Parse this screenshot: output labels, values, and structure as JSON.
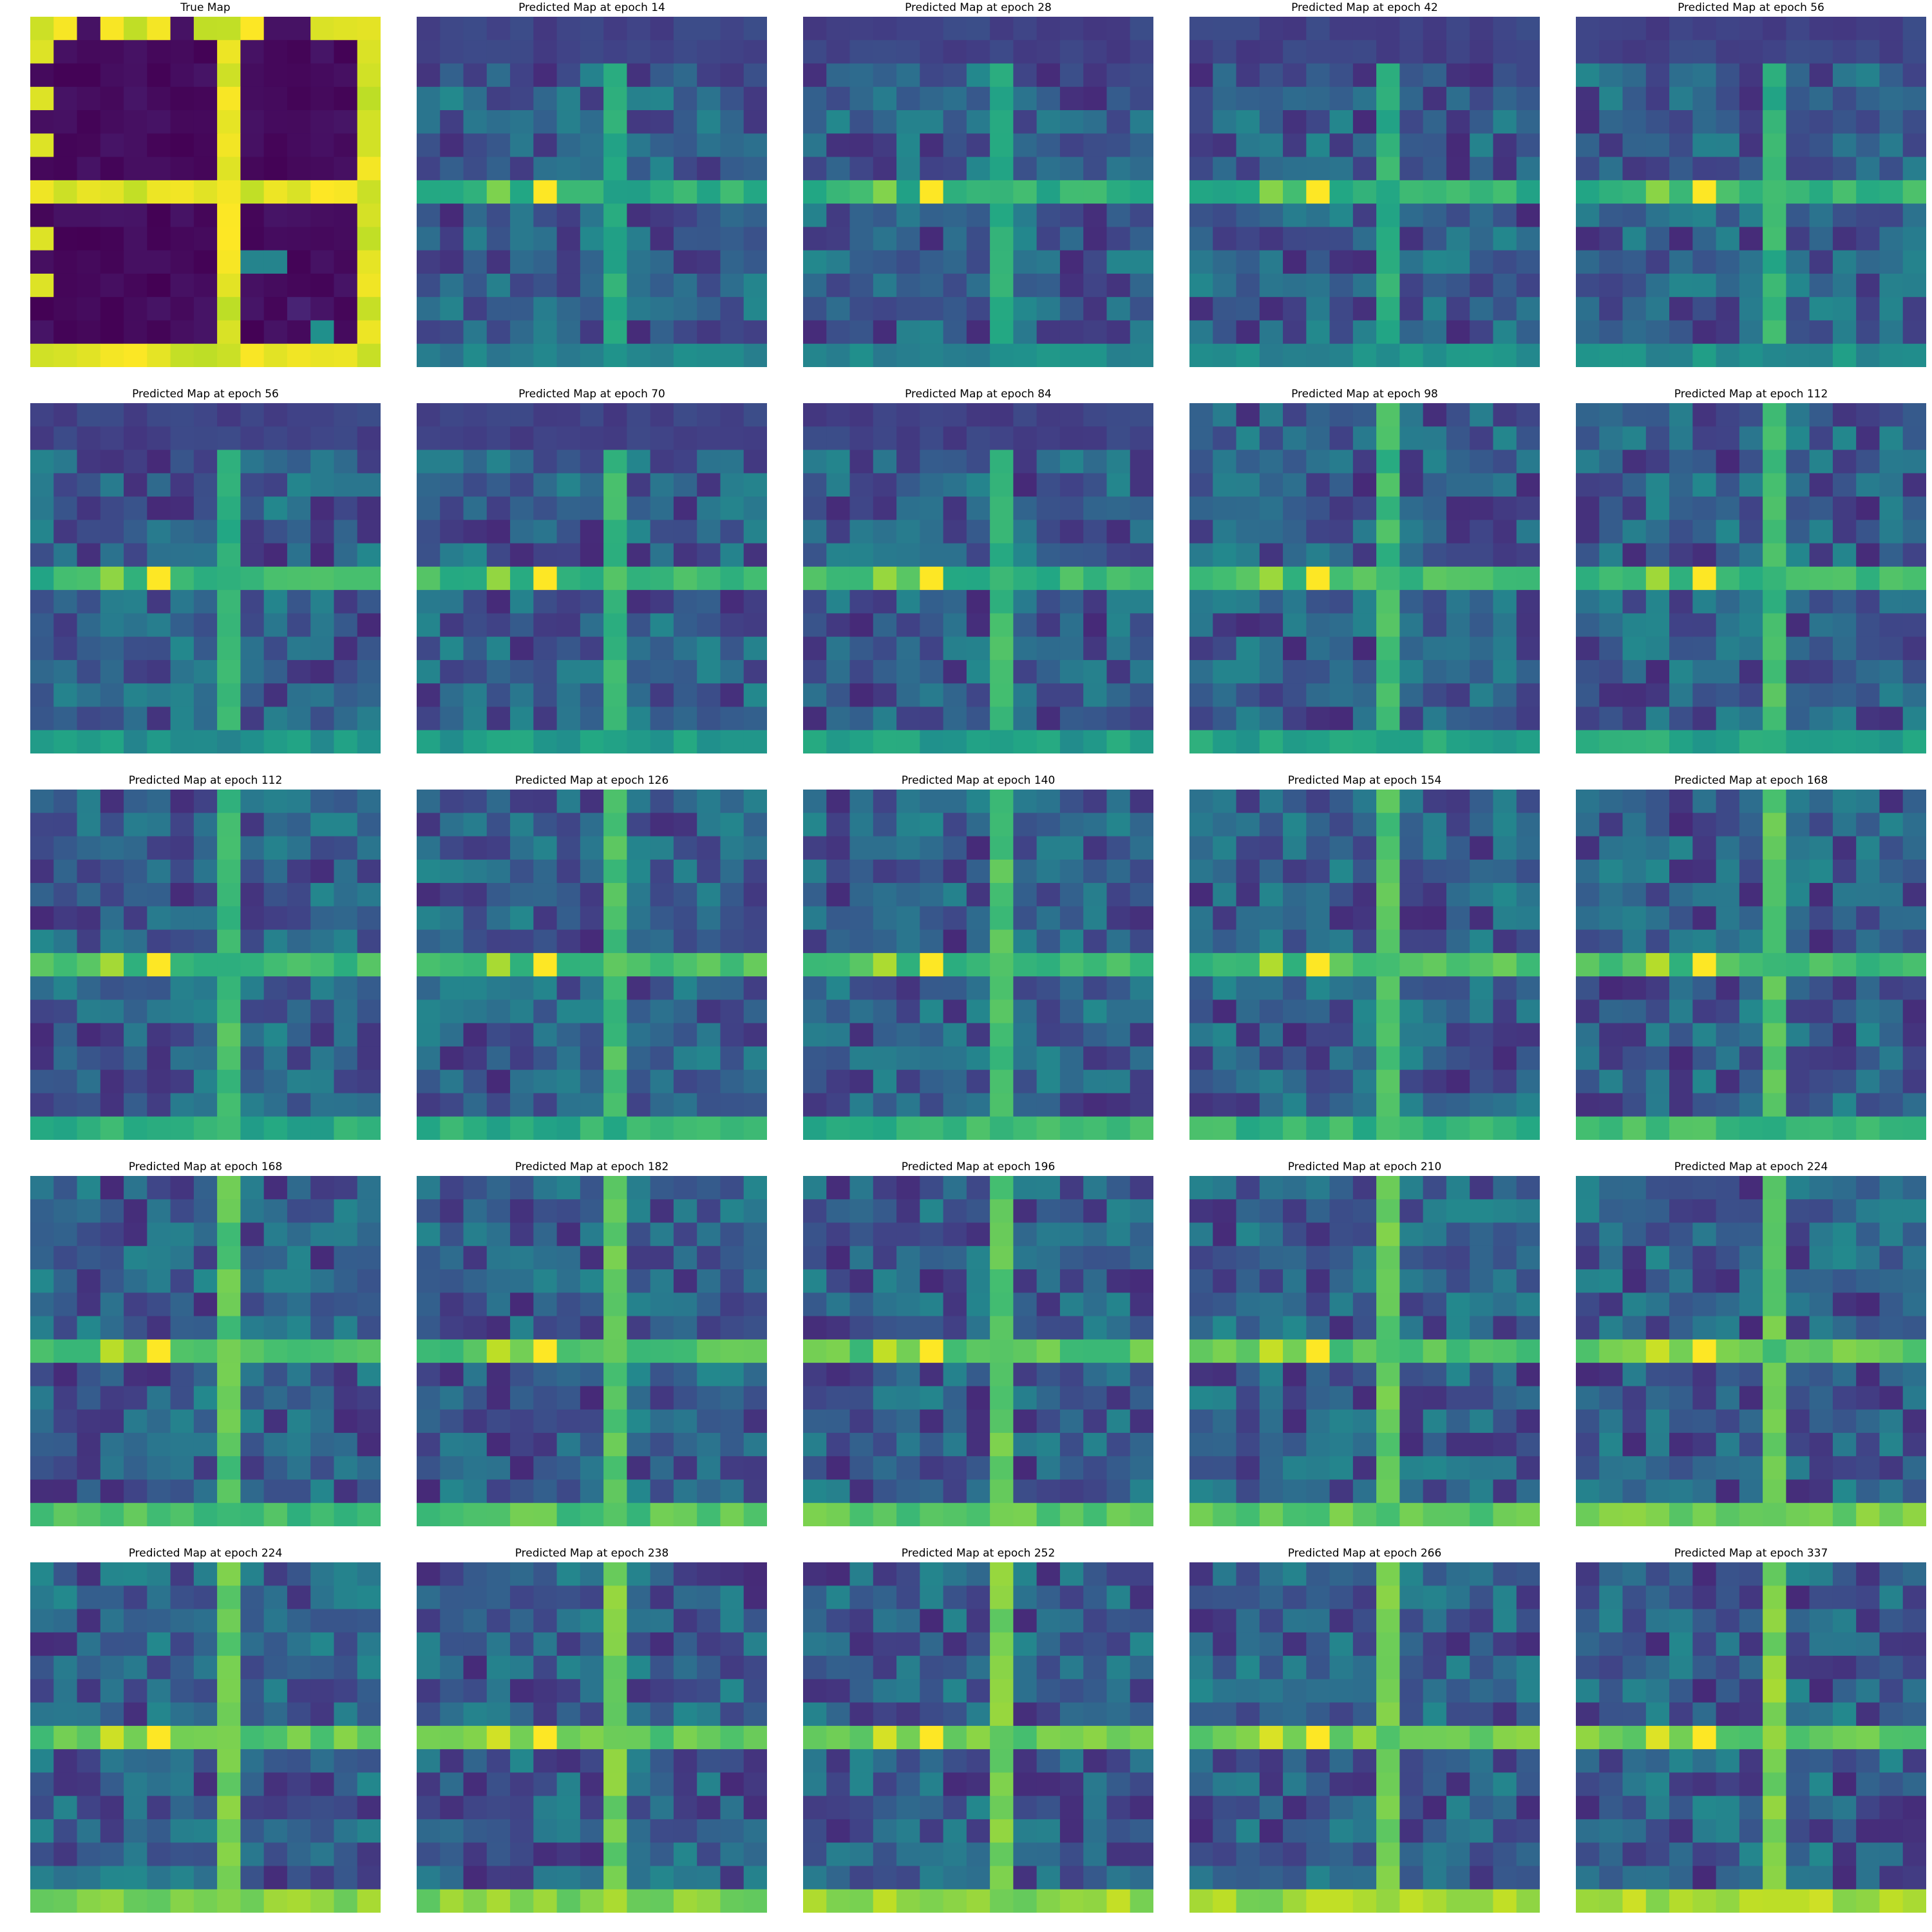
{
  "chart_data": [
    {
      "type": "heatmap",
      "title": "True Map",
      "colormap": "viridis",
      "grid_size": [
        15,
        15
      ],
      "axes": "off"
    },
    {
      "type": "heatmap",
      "title": "Predicted Map at epoch 14",
      "colormap": "viridis",
      "grid_size": [
        15,
        15
      ],
      "axes": "off"
    },
    {
      "type": "heatmap",
      "title": "Predicted Map at epoch 28",
      "colormap": "viridis",
      "grid_size": [
        15,
        15
      ],
      "axes": "off"
    },
    {
      "type": "heatmap",
      "title": "Predicted Map at epoch 42",
      "colormap": "viridis",
      "grid_size": [
        15,
        15
      ],
      "axes": "off"
    },
    {
      "type": "heatmap",
      "title": "Predicted Map at epoch 56",
      "colormap": "viridis",
      "grid_size": [
        15,
        15
      ],
      "axes": "off"
    },
    {
      "type": "heatmap",
      "title": "Predicted Map at epoch 56",
      "colormap": "viridis",
      "grid_size": [
        15,
        15
      ],
      "axes": "off"
    },
    {
      "type": "heatmap",
      "title": "Predicted Map at epoch 70",
      "colormap": "viridis",
      "grid_size": [
        15,
        15
      ],
      "axes": "off"
    },
    {
      "type": "heatmap",
      "title": "Predicted Map at epoch 84",
      "colormap": "viridis",
      "grid_size": [
        15,
        15
      ],
      "axes": "off"
    },
    {
      "type": "heatmap",
      "title": "Predicted Map at epoch 98",
      "colormap": "viridis",
      "grid_size": [
        15,
        15
      ],
      "axes": "off"
    },
    {
      "type": "heatmap",
      "title": "Predicted Map at epoch 112",
      "colormap": "viridis",
      "grid_size": [
        15,
        15
      ],
      "axes": "off"
    },
    {
      "type": "heatmap",
      "title": "Predicted Map at epoch 112",
      "colormap": "viridis",
      "grid_size": [
        15,
        15
      ],
      "axes": "off"
    },
    {
      "type": "heatmap",
      "title": "Predicted Map at epoch 126",
      "colormap": "viridis",
      "grid_size": [
        15,
        15
      ],
      "axes": "off"
    },
    {
      "type": "heatmap",
      "title": "Predicted Map at epoch 140",
      "colormap": "viridis",
      "grid_size": [
        15,
        15
      ],
      "axes": "off"
    },
    {
      "type": "heatmap",
      "title": "Predicted Map at epoch 154",
      "colormap": "viridis",
      "grid_size": [
        15,
        15
      ],
      "axes": "off"
    },
    {
      "type": "heatmap",
      "title": "Predicted Map at epoch 168",
      "colormap": "viridis",
      "grid_size": [
        15,
        15
      ],
      "axes": "off"
    },
    {
      "type": "heatmap",
      "title": "Predicted Map at epoch 168",
      "colormap": "viridis",
      "grid_size": [
        15,
        15
      ],
      "axes": "off"
    },
    {
      "type": "heatmap",
      "title": "Predicted Map at epoch 182",
      "colormap": "viridis",
      "grid_size": [
        15,
        15
      ],
      "axes": "off"
    },
    {
      "type": "heatmap",
      "title": "Predicted Map at epoch 196",
      "colormap": "viridis",
      "grid_size": [
        15,
        15
      ],
      "axes": "off"
    },
    {
      "type": "heatmap",
      "title": "Predicted Map at epoch 210",
      "colormap": "viridis",
      "grid_size": [
        15,
        15
      ],
      "axes": "off"
    },
    {
      "type": "heatmap",
      "title": "Predicted Map at epoch 224",
      "colormap": "viridis",
      "grid_size": [
        15,
        15
      ],
      "axes": "off"
    },
    {
      "type": "heatmap",
      "title": "Predicted Map at epoch 224",
      "colormap": "viridis",
      "grid_size": [
        15,
        15
      ],
      "axes": "off"
    },
    {
      "type": "heatmap",
      "title": "Predicted Map at epoch 238",
      "colormap": "viridis",
      "grid_size": [
        15,
        15
      ],
      "axes": "off"
    },
    {
      "type": "heatmap",
      "title": "Predicted Map at epoch 252",
      "colormap": "viridis",
      "grid_size": [
        15,
        15
      ],
      "axes": "off"
    },
    {
      "type": "heatmap",
      "title": "Predicted Map at epoch 266",
      "colormap": "viridis",
      "grid_size": [
        15,
        15
      ],
      "axes": "off"
    },
    {
      "type": "heatmap",
      "title": "Predicted Map at epoch 337",
      "colormap": "viridis",
      "grid_size": [
        15,
        15
      ],
      "axes": "off"
    }
  ]
}
